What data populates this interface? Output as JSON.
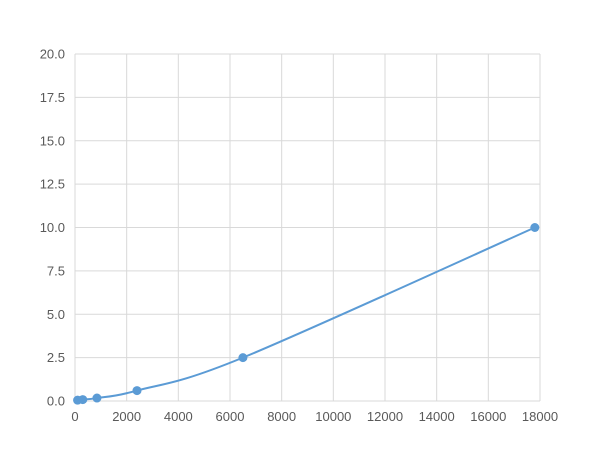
{
  "chart_data": {
    "type": "line",
    "title": "",
    "xlabel": "",
    "ylabel": "",
    "xlim": [
      0,
      18000
    ],
    "ylim": [
      0,
      20
    ],
    "x_ticks": [
      "0",
      "2000",
      "4000",
      "6000",
      "8000",
      "10000",
      "12000",
      "14000",
      "16000",
      "18000"
    ],
    "y_ticks": [
      "0.0",
      "2.5",
      "5.0",
      "7.5",
      "10.0",
      "12.5",
      "15.0",
      "17.5",
      "20.0"
    ],
    "grid": true,
    "smooth": true,
    "markers": true,
    "color": "#5b9bd5",
    "grid_color": "#d9d9d9",
    "series": [
      {
        "x": [
          100,
          300,
          850,
          2400,
          6500,
          17800
        ],
        "y": [
          0.05,
          0.08,
          0.17,
          0.6,
          2.5,
          10.0
        ]
      }
    ]
  }
}
